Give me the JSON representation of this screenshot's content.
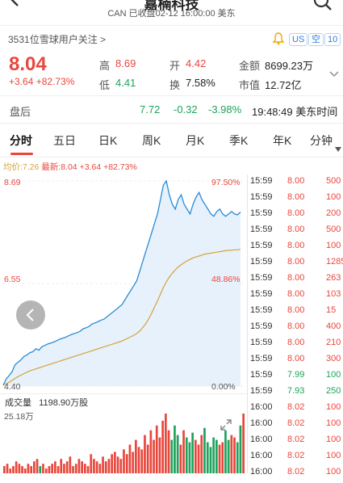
{
  "header": {
    "title": "嘉楠科技",
    "subtitle": "CAN  已收盘02-12 16:00:00 美东"
  },
  "follow": {
    "text": "3531位雪球用户关注 >"
  },
  "tags": [
    "US",
    "空",
    "10"
  ],
  "quote": {
    "price": "8.04",
    "change": "+3.64",
    "change_pct": "+82.73%",
    "high_label": "高",
    "high": "8.69",
    "low_label": "低",
    "low": "4.41",
    "open_label": "开",
    "open": "4.42",
    "turnover_label": "换",
    "turnover": "7.58%",
    "amount_label": "金额",
    "amount": "8699.23万",
    "mktcap_label": "市值",
    "mktcap": "12.72亿"
  },
  "afterhours": {
    "label": "盘后",
    "price": "7.72",
    "change": "-0.32",
    "change_pct": "-3.98%",
    "time": "19:48:49 美东时间"
  },
  "tabs": [
    "分时",
    "五日",
    "日K",
    "周K",
    "月K",
    "季K",
    "年K",
    "分钟"
  ],
  "chart_labels": {
    "avg": "均价:7.26",
    "latest": "最新:8.04",
    "latest_change": "+3.64",
    "latest_pct": "+82.73%",
    "y_top": "8.69",
    "y_mid": "6.55",
    "y_bot": "4.40",
    "pct_top": "97.50%",
    "pct_mid": "48.86%",
    "pct_bot": "0.00%",
    "volume_label": "成交量",
    "volume_value": "1198.90万股",
    "volume_max": "25.18万",
    "colors": {
      "price_line": "#2a8cd6",
      "avg_line": "#d8a23a",
      "fill": "#e6f1fb",
      "up": "#e8473d",
      "down": "#1ea35c"
    }
  },
  "chart_data": {
    "type": "line",
    "title": "",
    "xlabel": "",
    "ylabel": "",
    "ylim": [
      4.4,
      8.69
    ],
    "series": [
      {
        "values": [
          4.42,
          4.55,
          4.62,
          4.7,
          4.85,
          4.9,
          4.95,
          5.02,
          5.05,
          5.1,
          5.12,
          5.18,
          5.15,
          5.22,
          5.25,
          5.28,
          5.3,
          5.32,
          5.35,
          5.38,
          5.4,
          5.42,
          5.45,
          5.48,
          5.5,
          5.52,
          5.55,
          5.6,
          5.62,
          5.65,
          5.7,
          5.72,
          5.75,
          5.78,
          5.8,
          5.85,
          5.9,
          5.95,
          6.0,
          6.05,
          6.1,
          6.2,
          6.3,
          6.4,
          6.5,
          6.6,
          6.8,
          7.0,
          7.2,
          7.4,
          7.6,
          7.8,
          8.0,
          8.3,
          8.6,
          8.69,
          8.4,
          8.2,
          8.1,
          8.3,
          8.4,
          8.2,
          8.1,
          8.0,
          8.2,
          8.35,
          8.45,
          8.3,
          8.2,
          8.1,
          8.0,
          7.95,
          8.05,
          8.1,
          8.0,
          7.95,
          8.0,
          8.05,
          8.0,
          7.98,
          8.04
        ]
      },
      {
        "values": [
          4.42,
          4.45,
          4.48,
          4.52,
          4.56,
          4.6,
          4.63,
          4.66,
          4.69,
          4.72,
          4.74,
          4.76,
          4.78,
          4.8,
          4.82,
          4.84,
          4.86,
          4.88,
          4.9,
          4.92,
          4.94,
          4.96,
          4.98,
          5.0,
          5.02,
          5.04,
          5.06,
          5.08,
          5.1,
          5.12,
          5.14,
          5.16,
          5.18,
          5.2,
          5.22,
          5.24,
          5.26,
          5.28,
          5.3,
          5.32,
          5.34,
          5.37,
          5.4,
          5.43,
          5.46,
          5.5,
          5.55,
          5.62,
          5.7,
          5.8,
          5.92,
          6.05,
          6.18,
          6.32,
          6.46,
          6.58,
          6.68,
          6.76,
          6.83,
          6.89,
          6.94,
          6.98,
          7.02,
          7.05,
          7.08,
          7.1,
          7.12,
          7.14,
          7.16,
          7.17,
          7.18,
          7.19,
          7.2,
          7.21,
          7.22,
          7.23,
          7.24,
          7.24,
          7.25,
          7.25,
          7.26
        ]
      }
    ],
    "volume": [
      3,
      4,
      2,
      3,
      5,
      4,
      3,
      2,
      4,
      3,
      5,
      6,
      3,
      4,
      2,
      3,
      4,
      5,
      3,
      6,
      4,
      5,
      7,
      3,
      4,
      6,
      5,
      4,
      3,
      8,
      6,
      5,
      4,
      7,
      5,
      6,
      8,
      9,
      7,
      6,
      10,
      8,
      12,
      9,
      14,
      11,
      10,
      16,
      12,
      18,
      14,
      20,
      15,
      22,
      25,
      18,
      14,
      20,
      16,
      12,
      18,
      15,
      13,
      17,
      14,
      12,
      16,
      19,
      13,
      11,
      15,
      14,
      12,
      13,
      18,
      14,
      16,
      15,
      13,
      20,
      25
    ]
  },
  "ticks": [
    {
      "time": "15:59",
      "price": "8.00",
      "vol": "500",
      "dir": "up"
    },
    {
      "time": "15:59",
      "price": "8.00",
      "vol": "100",
      "dir": "up"
    },
    {
      "time": "15:59",
      "price": "8.00",
      "vol": "200",
      "dir": "up"
    },
    {
      "time": "15:59",
      "price": "8.00",
      "vol": "500",
      "dir": "up"
    },
    {
      "time": "15:59",
      "price": "8.00",
      "vol": "100",
      "dir": "up"
    },
    {
      "time": "15:59",
      "price": "8.00",
      "vol": "1285",
      "dir": "up"
    },
    {
      "time": "15:59",
      "price": "8.00",
      "vol": "263",
      "dir": "up"
    },
    {
      "time": "15:59",
      "price": "8.00",
      "vol": "103",
      "dir": "up"
    },
    {
      "time": "15:59",
      "price": "8.00",
      "vol": "15",
      "dir": "up"
    },
    {
      "time": "15:59",
      "price": "8.00",
      "vol": "400",
      "dir": "up"
    },
    {
      "time": "15:59",
      "price": "8.00",
      "vol": "210",
      "dir": "up"
    },
    {
      "time": "15:59",
      "price": "8.00",
      "vol": "300",
      "dir": "up"
    },
    {
      "time": "15:59",
      "price": "7.99",
      "vol": "100",
      "dir": "down"
    },
    {
      "time": "15:59",
      "price": "7.93",
      "vol": "250",
      "dir": "down"
    },
    {
      "time": "16:00",
      "price": "8.02",
      "vol": "100",
      "dir": "up"
    },
    {
      "time": "16:00",
      "price": "8.02",
      "vol": "100",
      "dir": "up"
    },
    {
      "time": "16:00",
      "price": "8.02",
      "vol": "100",
      "dir": "up"
    },
    {
      "time": "16:00",
      "price": "8.02",
      "vol": "100",
      "dir": "up"
    },
    {
      "time": "16:00",
      "price": "8.02",
      "vol": "100",
      "dir": "up"
    }
  ]
}
